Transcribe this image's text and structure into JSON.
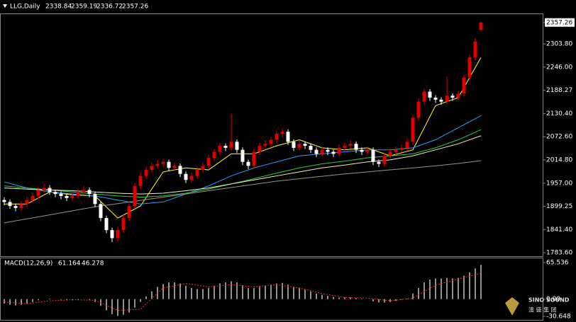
{
  "header": {
    "symbol": "LLG,Daily",
    "open": 2338.84,
    "high": 2359.19,
    "low": 2336.72,
    "close": 2357.26
  },
  "watermark": {
    "brand": "SINO SOUND",
    "name": "澳 盛 集 团"
  },
  "chart_data": [
    {
      "type": "candlestick",
      "up_color": "#e00000",
      "down_color": "#ffffff",
      "ylim": [
        1775,
        2378
      ],
      "yticks": [
        2357.26,
        {
          "value": 2303.8,
          "label": "2303.80"
        },
        {
          "value": 2246,
          "label": "2246.00"
        },
        2188.27,
        {
          "value": 2130.4,
          "label": "2130.40"
        },
        {
          "value": 2072.6,
          "label": "2072.60"
        },
        {
          "value": 2014.8,
          "label": "2014.80"
        },
        {
          "value": 1957,
          "label": "1957.00"
        },
        1899.25,
        {
          "value": 1841.4,
          "label": "1841.40"
        },
        {
          "value": 1783.6,
          "label": "1783.60"
        }
      ],
      "candles": [
        [
          1915,
          1922,
          1902,
          1910
        ],
        [
          1910,
          1916,
          1893,
          1900
        ],
        [
          1900,
          1906,
          1887,
          1895
        ],
        [
          1895,
          1912,
          1889,
          1905
        ],
        [
          1905,
          1922,
          1898,
          1915
        ],
        [
          1915,
          1933,
          1908,
          1925
        ],
        [
          1925,
          1948,
          1918,
          1940
        ],
        [
          1940,
          1955,
          1932,
          1945
        ],
        [
          1945,
          1952,
          1928,
          1935
        ],
        [
          1935,
          1941,
          1922,
          1930
        ],
        [
          1930,
          1936,
          1917,
          1925
        ],
        [
          1925,
          1932,
          1912,
          1920
        ],
        [
          1920,
          1932,
          1913,
          1925
        ],
        [
          1925,
          1943,
          1918,
          1935
        ],
        [
          1935,
          1950,
          1928,
          1940
        ],
        [
          1940,
          1946,
          1922,
          1930
        ],
        [
          1930,
          1936,
          1897,
          1905
        ],
        [
          1905,
          1911,
          1862,
          1870
        ],
        [
          1870,
          1876,
          1832,
          1840
        ],
        [
          1840,
          1846,
          1810,
          1820
        ],
        [
          1820,
          1848,
          1812,
          1840
        ],
        [
          1840,
          1878,
          1833,
          1870
        ],
        [
          1870,
          1908,
          1862,
          1900
        ],
        [
          1900,
          1958,
          1893,
          1950
        ],
        [
          1950,
          1985,
          1942,
          1975
        ],
        [
          1975,
          1998,
          1967,
          1990
        ],
        [
          1990,
          2008,
          1982,
          2000
        ],
        [
          2000,
          2015,
          1992,
          2005
        ],
        [
          2005,
          2018,
          1996,
          2010
        ],
        [
          2010,
          2016,
          1987,
          1995
        ],
        [
          1995,
          2008,
          1988,
          2000
        ],
        [
          2000,
          2006,
          1972,
          1980
        ],
        [
          1980,
          1986,
          1957,
          1965
        ],
        [
          1965,
          1983,
          1958,
          1975
        ],
        [
          1975,
          1998,
          1968,
          1990
        ],
        [
          1990,
          2008,
          1982,
          2000
        ],
        [
          2000,
          2028,
          1993,
          2020
        ],
        [
          2020,
          2043,
          2012,
          2035
        ],
        [
          2035,
          2058,
          2027,
          2050
        ],
        [
          2050,
          2056,
          2037,
          2045
        ],
        [
          2045,
          2130,
          2038,
          2060
        ],
        [
          2060,
          2066,
          2032,
          2040
        ],
        [
          2040,
          2046,
          2002,
          2010
        ],
        [
          2010,
          2016,
          1992,
          2000
        ],
        [
          2000,
          2043,
          1993,
          2035
        ],
        [
          2035,
          2058,
          2027,
          2050
        ],
        [
          2050,
          2063,
          2042,
          2055
        ],
        [
          2055,
          2073,
          2047,
          2065
        ],
        [
          2065,
          2088,
          2057,
          2080
        ],
        [
          2080,
          2093,
          2072,
          2085
        ],
        [
          2085,
          2091,
          2052,
          2060
        ],
        [
          2060,
          2066,
          2037,
          2045
        ],
        [
          2045,
          2063,
          2038,
          2055
        ],
        [
          2055,
          2061,
          2042,
          2050
        ],
        [
          2050,
          2056,
          2032,
          2040
        ],
        [
          2040,
          2046,
          2022,
          2030
        ],
        [
          2030,
          2048,
          2023,
          2040
        ],
        [
          2040,
          2046,
          2027,
          2035
        ],
        [
          2035,
          2041,
          2022,
          2030
        ],
        [
          2030,
          2053,
          2023,
          2045
        ],
        [
          2045,
          2058,
          2038,
          2050
        ],
        [
          2050,
          2063,
          2042,
          2055
        ],
        [
          2055,
          2061,
          2032,
          2040
        ],
        [
          2040,
          2046,
          2027,
          2035
        ],
        [
          2035,
          2048,
          2028,
          2040
        ],
        [
          2040,
          2046,
          2002,
          2010
        ],
        [
          2010,
          2016,
          1997,
          2005
        ],
        [
          2005,
          2033,
          1998,
          2025
        ],
        [
          2025,
          2043,
          2018,
          2035
        ],
        [
          2035,
          2048,
          2028,
          2040
        ],
        [
          2040,
          2053,
          2033,
          2045
        ],
        [
          2045,
          2068,
          2038,
          2060
        ],
        [
          2060,
          2128,
          2052,
          2120
        ],
        [
          2120,
          2168,
          2112,
          2160
        ],
        [
          2160,
          2193,
          2152,
          2185
        ],
        [
          2185,
          2191,
          2162,
          2170
        ],
        [
          2170,
          2176,
          2157,
          2165
        ],
        [
          2165,
          2171,
          2152,
          2160
        ],
        [
          2160,
          2222,
          2153,
          2175
        ],
        [
          2175,
          2181,
          2162,
          2170
        ],
        [
          2170,
          2188,
          2163,
          2180
        ],
        [
          2180,
          2228,
          2173,
          2220
        ],
        [
          2220,
          2278,
          2212,
          2270
        ],
        [
          2270,
          2318,
          2262,
          2310
        ],
        [
          2338.84,
          2359.19,
          2336.72,
          2357.26
        ]
      ],
      "lines": [
        {
          "color": "#ffff33",
          "values": [
            1905,
            1905,
            1935,
            1928,
            1925,
            1870,
            1900,
            1985,
            1995,
            1990,
            2030,
            2030,
            2050,
            2065,
            2045,
            2040,
            2045,
            2025,
            2040,
            2150,
            2170,
            2270
          ]
        },
        {
          "color": "#3399ff",
          "values": [
            1960,
            1945,
            1935,
            1930,
            1925,
            1915,
            1905,
            1910,
            1930,
            1950,
            1975,
            1995,
            2010,
            2025,
            2030,
            2035,
            2040,
            2040,
            2045,
            2065,
            2095,
            2125
          ]
        },
        {
          "color": "#33cc33",
          "values": [
            1950,
            1945,
            1940,
            1935,
            1930,
            1925,
            1922,
            1925,
            1932,
            1942,
            1955,
            1968,
            1982,
            1995,
            2005,
            2012,
            2020,
            2025,
            2030,
            2045,
            2065,
            2090
          ]
        },
        {
          "color": "#f0f0c0",
          "values": [
            1945,
            1942,
            1940,
            1938,
            1935,
            1932,
            1930,
            1932,
            1938,
            1945,
            1955,
            1965,
            1975,
            1985,
            1995,
            2002,
            2010,
            2015,
            2025,
            2040,
            2055,
            2075
          ]
        },
        {
          "color": "#a09080",
          "values": [
            1858,
            1868,
            1878,
            1888,
            1898,
            1906,
            1914,
            1922,
            1930,
            1938,
            1946,
            1954,
            1962,
            1968,
            1974,
            1980,
            1985,
            1990,
            1995,
            2000,
            2006,
            2013
          ]
        }
      ]
    },
    {
      "type": "macd",
      "title": "MACD(12,26,9)",
      "macd": 61.164,
      "signal": 46.278,
      "hist_color": "#c0c0c0",
      "signal_color": "#ff3030",
      "ylim": [
        -37,
        73
      ],
      "yticks": [
        65.536,
        {
          "value": 0,
          "label": "0.00"
        },
        -30.648
      ],
      "histogram": [
        -8,
        -10,
        -11,
        -10,
        -8,
        -5,
        -2,
        0,
        1,
        0,
        -1,
        -2,
        -2,
        -1,
        0,
        -1,
        -5,
        -12,
        -20,
        -27,
        -30,
        -28,
        -24,
        -15,
        -5,
        5,
        14,
        22,
        27,
        30,
        30,
        28,
        24,
        20,
        18,
        18,
        20,
        24,
        28,
        30,
        32,
        30,
        25,
        20,
        20,
        22,
        24,
        26,
        28,
        29,
        26,
        22,
        20,
        17,
        14,
        10,
        8,
        6,
        4,
        3,
        3,
        3,
        2,
        1,
        0,
        -4,
        -6,
        -6,
        -5,
        -3,
        -1,
        1,
        10,
        20,
        30,
        35,
        37,
        37,
        38,
        37,
        38,
        42,
        48,
        55,
        61.164
      ],
      "signal_line": [
        -5,
        -8,
        -3,
        -1,
        -2,
        -20,
        -18,
        20,
        28,
        22,
        26,
        22,
        26,
        20,
        10,
        3,
        2,
        -3,
        2,
        25,
        36,
        46.278
      ]
    }
  ]
}
